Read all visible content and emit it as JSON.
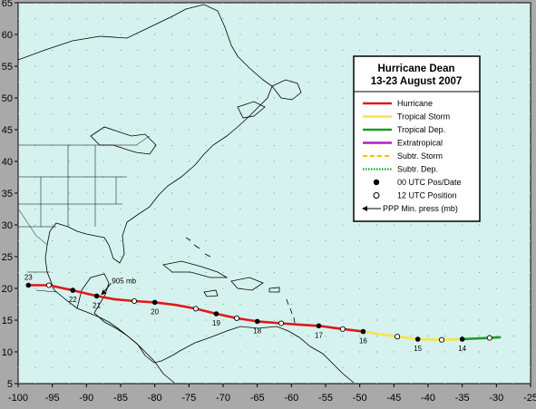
{
  "title": "Hurricane Dean",
  "subtitle": "13-23 August 2007",
  "colors": {
    "hurricane": "#e01818",
    "tropical_storm": "#f7e34a",
    "tropical_dep": "#1f9a2a",
    "extratropical": "#b020c0",
    "subtr_storm": "#f5c400",
    "subtr_dep": "#1f9a2a",
    "ocean": "#d6f2ee",
    "grid_dot": "#6aa6a0"
  },
  "legend": [
    {
      "key": "hurricane",
      "label": "Hurricane",
      "style": "solid"
    },
    {
      "key": "tropical_storm",
      "label": "Tropical Storm",
      "style": "solid"
    },
    {
      "key": "tropical_dep",
      "label": "Tropical Dep.",
      "style": "solid"
    },
    {
      "key": "extratropical",
      "label": "Extratropical",
      "style": "solid"
    },
    {
      "key": "subtr_storm",
      "label": "Subtr. Storm",
      "style": "dashed"
    },
    {
      "key": "subtr_dep",
      "label": "Subtr. Dep.",
      "style": "dotted"
    },
    {
      "key": "pos00",
      "label": "00 UTC Pos/Date",
      "style": "filled-dot"
    },
    {
      "key": "pos12",
      "label": "12 UTC Position",
      "style": "open-dot"
    },
    {
      "key": "press",
      "label": "PPP  Min. press (mb)",
      "style": "arrow"
    }
  ],
  "pressure_label": "905 mb",
  "chart_data": {
    "type": "scatter",
    "xlabel": "",
    "ylabel": "",
    "xlim": [
      -100,
      -25
    ],
    "ylim": [
      5,
      65
    ],
    "x_ticks": [
      -100,
      -95,
      -90,
      -85,
      -80,
      -75,
      -70,
      -65,
      -60,
      -55,
      -50,
      -45,
      -40,
      -35,
      -30,
      -25
    ],
    "y_ticks": [
      5,
      10,
      15,
      20,
      25,
      30,
      35,
      40,
      45,
      50,
      55,
      60,
      65
    ],
    "track": [
      {
        "lon": -29.5,
        "lat": 12.3,
        "intensity": "tropical_dep"
      },
      {
        "lon": -31.0,
        "lat": 12.2,
        "intensity": "tropical_dep"
      },
      {
        "lon": -35.0,
        "lat": 12.0,
        "intensity": "tropical_dep"
      },
      {
        "lon": -38.0,
        "lat": 11.9,
        "intensity": "tropical_storm"
      },
      {
        "lon": -41.5,
        "lat": 12.0,
        "intensity": "tropical_storm"
      },
      {
        "lon": -44.5,
        "lat": 12.4,
        "intensity": "tropical_storm"
      },
      {
        "lon": -49.5,
        "lat": 13.2,
        "intensity": "tropical_storm"
      },
      {
        "lon": -52.5,
        "lat": 13.6,
        "intensity": "hurricane"
      },
      {
        "lon": -56.0,
        "lat": 14.1,
        "intensity": "hurricane"
      },
      {
        "lon": -59.0,
        "lat": 14.3,
        "intensity": "hurricane"
      },
      {
        "lon": -61.5,
        "lat": 14.5,
        "intensity": "hurricane"
      },
      {
        "lon": -65.0,
        "lat": 14.8,
        "intensity": "hurricane"
      },
      {
        "lon": -68.0,
        "lat": 15.3,
        "intensity": "hurricane"
      },
      {
        "lon": -71.0,
        "lat": 16.0,
        "intensity": "hurricane"
      },
      {
        "lon": -74.0,
        "lat": 16.8,
        "intensity": "hurricane"
      },
      {
        "lon": -77.0,
        "lat": 17.4,
        "intensity": "hurricane"
      },
      {
        "lon": -80.0,
        "lat": 17.8,
        "intensity": "hurricane"
      },
      {
        "lon": -83.0,
        "lat": 18.0,
        "intensity": "hurricane"
      },
      {
        "lon": -86.0,
        "lat": 18.3,
        "intensity": "hurricane"
      },
      {
        "lon": -88.5,
        "lat": 18.8,
        "intensity": "hurricane"
      },
      {
        "lon": -92.0,
        "lat": 19.7,
        "intensity": "hurricane"
      },
      {
        "lon": -95.5,
        "lat": 20.5,
        "intensity": "hurricane"
      },
      {
        "lon": -98.5,
        "lat": 20.5,
        "intensity": "hurricane"
      }
    ],
    "points_00utc": [
      {
        "lon": -35.0,
        "lat": 12.0,
        "label": "14"
      },
      {
        "lon": -41.5,
        "lat": 12.0,
        "label": "15"
      },
      {
        "lon": -49.5,
        "lat": 13.2,
        "label": "16"
      },
      {
        "lon": -56.0,
        "lat": 14.1,
        "label": "17"
      },
      {
        "lon": -65.0,
        "lat": 14.8,
        "label": "18"
      },
      {
        "lon": -71.0,
        "lat": 16.0,
        "label": "19"
      },
      {
        "lon": -80.0,
        "lat": 17.8,
        "label": "20"
      },
      {
        "lon": -88.5,
        "lat": 18.8,
        "label": "21"
      },
      {
        "lon": -92.0,
        "lat": 19.7,
        "label": "22"
      },
      {
        "lon": -98.5,
        "lat": 20.5,
        "label": "23"
      }
    ],
    "points_12utc": [
      {
        "lon": -31.0,
        "lat": 12.2
      },
      {
        "lon": -38.0,
        "lat": 11.9
      },
      {
        "lon": -44.5,
        "lat": 12.4
      },
      {
        "lon": -52.5,
        "lat": 13.6
      },
      {
        "lon": -61.5,
        "lat": 14.5
      },
      {
        "lon": -68.0,
        "lat": 15.3
      },
      {
        "lon": -74.0,
        "lat": 16.8
      },
      {
        "lon": -83.0,
        "lat": 18.0
      },
      {
        "lon": -95.5,
        "lat": 20.5
      }
    ],
    "min_pressure_point": {
      "lon": -88.0,
      "lat": 18.8,
      "label": "905 mb"
    }
  }
}
